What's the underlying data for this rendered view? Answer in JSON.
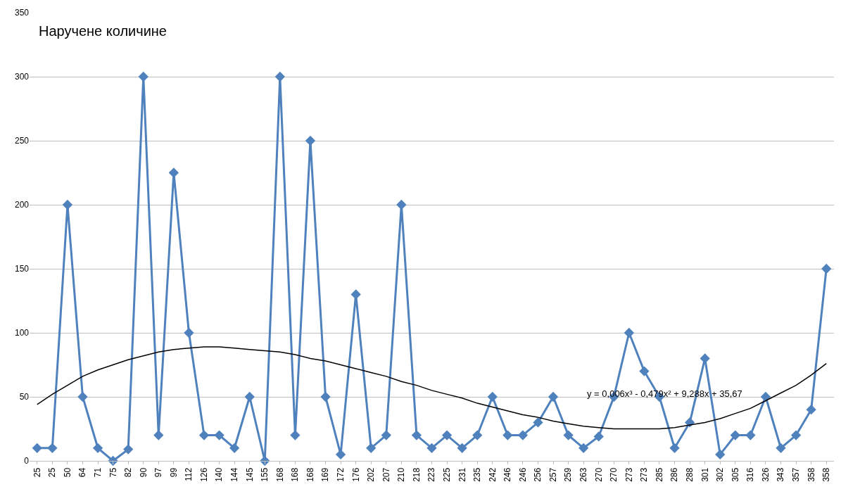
{
  "chart_data": {
    "type": "line",
    "title": "Наручене количине",
    "categories": [
      "25",
      "25",
      "50",
      "64",
      "71",
      "75",
      "82",
      "90",
      "97",
      "99",
      "112",
      "126",
      "140",
      "144",
      "145",
      "155",
      "168",
      "168",
      "168",
      "169",
      "172",
      "176",
      "202",
      "207",
      "210",
      "218",
      "223",
      "225",
      "231",
      "235",
      "242",
      "246",
      "246",
      "256",
      "257",
      "259",
      "263",
      "270",
      "270",
      "273",
      "273",
      "285",
      "286",
      "288",
      "301",
      "302",
      "305",
      "316",
      "326",
      "343",
      "357",
      "358",
      "358"
    ],
    "series": [
      {
        "color": "#4f81bd",
        "marker": "diamond",
        "values": [
          10,
          10,
          200,
          50,
          10,
          0,
          9,
          300,
          20,
          225,
          100,
          20,
          20,
          10,
          50,
          0,
          300,
          20,
          250,
          50,
          5,
          130,
          10,
          20,
          200,
          20,
          10,
          20,
          10,
          20,
          50,
          20,
          20,
          30,
          50,
          20,
          10,
          19,
          50,
          100,
          70,
          50,
          10,
          30,
          80,
          5,
          20,
          20,
          50,
          10,
          20,
          40,
          150
        ]
      },
      {
        "color": "#000000",
        "marker": "none",
        "values": [
          44,
          52,
          59,
          66,
          71,
          75,
          79,
          82,
          85,
          87,
          88,
          89,
          89,
          88,
          87,
          86,
          85,
          83,
          80,
          78,
          75,
          72,
          69,
          66,
          62,
          59,
          55,
          52,
          49,
          45,
          42,
          39,
          36,
          34,
          31,
          29,
          27,
          26,
          25,
          25,
          25,
          25,
          26,
          28,
          30,
          33,
          37,
          41,
          47,
          53,
          59,
          67,
          76
        ]
      }
    ],
    "annotations": [
      "y = 0,006x³ - 0,479x² + 9,288x + 35,67"
    ],
    "ylim": [
      0,
      350
    ],
    "yticks": [
      0,
      50,
      100,
      150,
      200,
      250,
      300,
      350
    ],
    "grid": "y",
    "line_style": "solid"
  }
}
